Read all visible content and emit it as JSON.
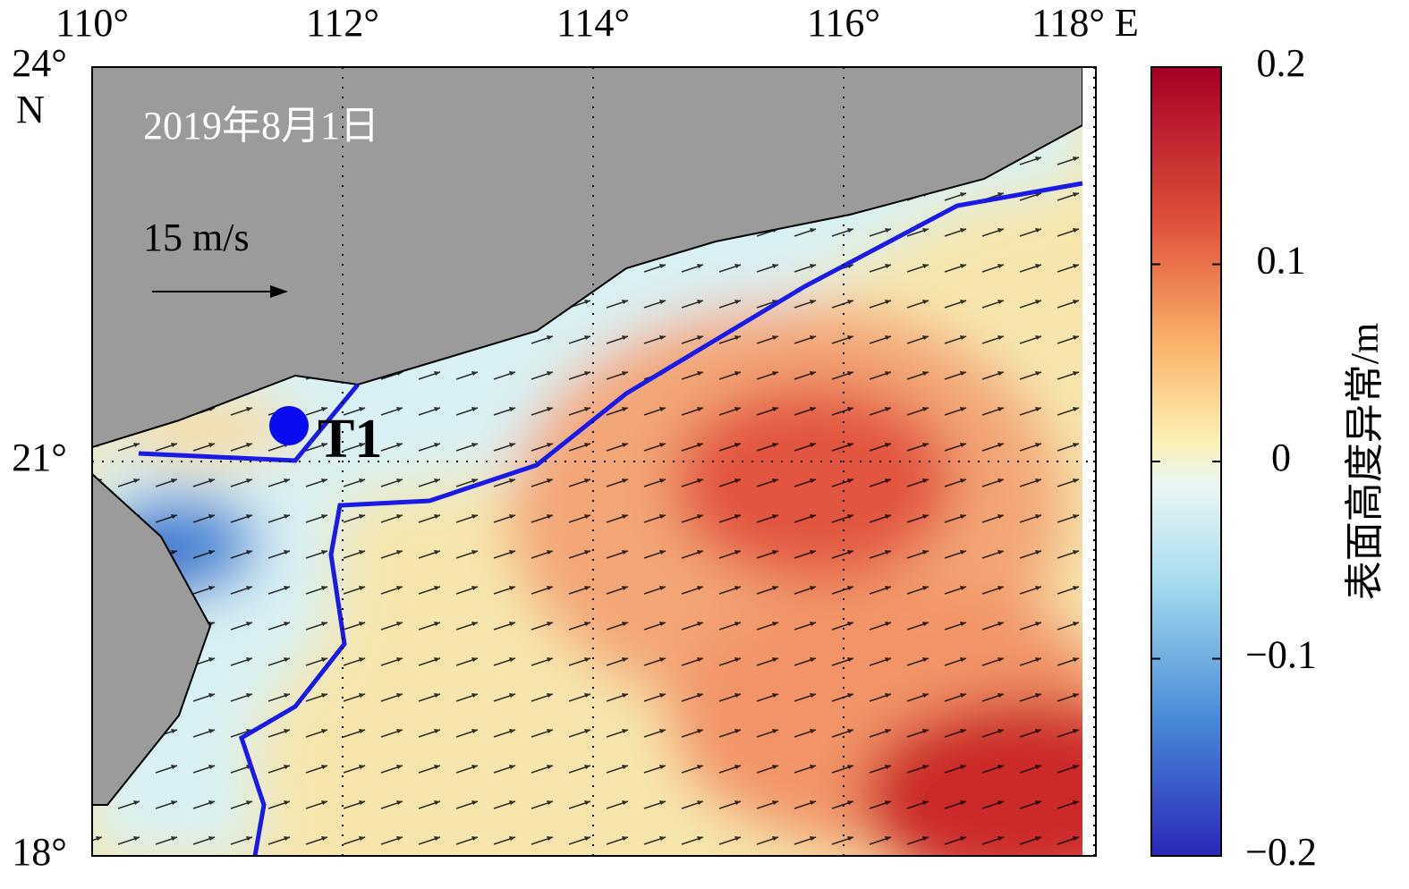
{
  "map": {
    "xlim": [
      110,
      118
    ],
    "ylim": [
      18,
      24
    ],
    "xticks": [
      {
        "value": 110,
        "label": "110°"
      },
      {
        "value": 112,
        "label": "112°"
      },
      {
        "value": 114,
        "label": "114°"
      },
      {
        "value": 116,
        "label": "116°"
      },
      {
        "value": 118,
        "label": "118° E"
      }
    ],
    "yticks": [
      {
        "value": 18,
        "label": "18°"
      },
      {
        "value": 21,
        "label": "21°"
      },
      {
        "value": 24,
        "label": "24°"
      }
    ],
    "north_label": "N",
    "date": "2019年8月1日",
    "scale_label": "15 m/s",
    "station": "T1",
    "colorbar": {
      "label": "表面高度异常/m",
      "clim": [
        -0.2,
        0.2
      ],
      "ticks": [
        0.2,
        0.1,
        0,
        {
          "value": -0.1,
          "label": "−0.1"
        },
        {
          "value": -0.2,
          "label": "−0.2"
        }
      ]
    }
  }
}
